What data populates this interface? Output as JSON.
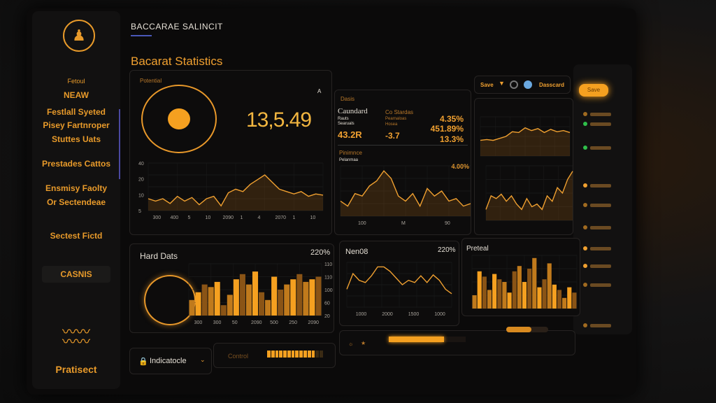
{
  "colors": {
    "accent": "#f0a030",
    "bright": "#f7b43a",
    "green": "#2fbf4a",
    "background": "#0b0a0a"
  },
  "header": {
    "app_title": "BACCARAE SALINCIT",
    "page_title": "Bacarat Statistics"
  },
  "sidebar": {
    "logo_icon": "people-icon",
    "items": [
      {
        "label": "Fetoul"
      },
      {
        "label": "NEAW"
      },
      {
        "label": "Festlall Syeted"
      },
      {
        "label": "Pisey Fartnroper"
      },
      {
        "label": "Stuttes Uats"
      },
      {
        "label": "Prestades Cattos"
      },
      {
        "label": "Ensmisy Faolty"
      },
      {
        "label": "Or Sectendeae"
      },
      {
        "label": "Sectest Fictd"
      },
      {
        "label": "CASNIS"
      }
    ],
    "footer_icon": "waves-icon",
    "footer_label": "Pratisect"
  },
  "toolbar": {
    "dropdown_label": "Save",
    "chevron_icon": "chevron-down-icon",
    "icons": [
      "circle-icon",
      "globe-icon"
    ],
    "button_label": "Dasscard",
    "primary_button_label": "Save"
  },
  "panel_potential": {
    "label": "Potential",
    "value": "13,5.49",
    "corner": "A"
  },
  "panel_stats": {
    "label": "Dasis",
    "title": "Caundard",
    "sub1": "Rauts",
    "sub2": "Searuals",
    "value1": "43.2R",
    "col_label": "Co Stardas",
    "row1": "Pearnaloas",
    "row2": "Hosea",
    "value2": "-3.7",
    "pct1": "4.35%",
    "pct2": "451.89%",
    "pct3": "13.3%",
    "label2": "Pinimnce",
    "label3": "Pelanmaa",
    "pct4": "4.00%"
  },
  "panel_hard": {
    "title": "Hard Dats",
    "pct": "220%"
  },
  "panel_nen": {
    "title": "Nen08",
    "pct": "220%"
  },
  "panel_preteal": {
    "title": "Preteal"
  },
  "bottom": {
    "dropdown_label": "Indicatocle",
    "lock_icon": "lock-icon",
    "control_label": "Control",
    "star_icon": "star-icon",
    "sun_icon": "sun-icon",
    "control_progress": 0.85,
    "main_progress": 0.72,
    "slider_value": 0.6
  },
  "chart_data": [
    {
      "id": "potential-line",
      "type": "area",
      "yticks": [
        "40",
        "20",
        "10",
        "5"
      ],
      "xticks": [
        "300",
        "400",
        "5",
        "10",
        "2090",
        "1",
        "4",
        "2070",
        "1",
        "10"
      ],
      "ylim": [
        0,
        40
      ],
      "values": [
        10,
        8,
        10,
        6,
        12,
        8,
        11,
        5,
        10,
        12,
        4,
        15,
        18,
        16,
        22,
        26,
        30,
        24,
        18,
        16,
        14,
        16,
        12,
        14,
        13
      ]
    },
    {
      "id": "stats-area",
      "type": "area",
      "xticks": [
        "100",
        "M",
        "90"
      ],
      "ylim": [
        0,
        100
      ],
      "values": [
        30,
        20,
        45,
        40,
        60,
        70,
        90,
        75,
        40,
        30,
        45,
        20,
        55,
        40,
        50,
        30,
        35,
        20,
        25
      ]
    },
    {
      "id": "side-area-top",
      "type": "area",
      "ylim": [
        0,
        100
      ],
      "values": [
        40,
        42,
        40,
        45,
        50,
        62,
        60,
        72,
        65,
        70,
        60,
        68,
        62,
        65,
        60
      ]
    },
    {
      "id": "side-area-bottom",
      "type": "area",
      "ylim": [
        0,
        100
      ],
      "values": [
        20,
        45,
        40,
        48,
        35,
        45,
        30,
        20,
        40,
        25,
        30,
        20,
        45,
        35,
        60,
        50,
        75,
        90
      ]
    },
    {
      "id": "hard-bars",
      "type": "bar",
      "yticks": [
        "110",
        "110",
        "100",
        "60",
        "20"
      ],
      "xticks": [
        "300",
        "300",
        "50",
        "2090",
        "500",
        "250",
        "2090"
      ],
      "ylim": [
        0,
        100
      ],
      "values": [
        30,
        45,
        60,
        55,
        65,
        20,
        40,
        70,
        80,
        60,
        85,
        45,
        30,
        75,
        50,
        60,
        70,
        80,
        65,
        70,
        75
      ]
    },
    {
      "id": "nen-line",
      "type": "line",
      "xticks": [
        "1000",
        "2000",
        "1500",
        "1000"
      ],
      "ylim": [
        0,
        100
      ],
      "values": [
        40,
        75,
        60,
        55,
        70,
        90,
        90,
        80,
        65,
        50,
        60,
        55,
        70,
        55,
        72,
        60,
        40,
        30
      ]
    },
    {
      "id": "preteal-bars",
      "type": "bar",
      "ylim": [
        0,
        100
      ],
      "values": [
        25,
        70,
        60,
        35,
        65,
        55,
        50,
        30,
        70,
        80,
        50,
        75,
        95,
        40,
        55,
        85,
        45,
        35,
        20,
        40,
        30
      ]
    }
  ]
}
